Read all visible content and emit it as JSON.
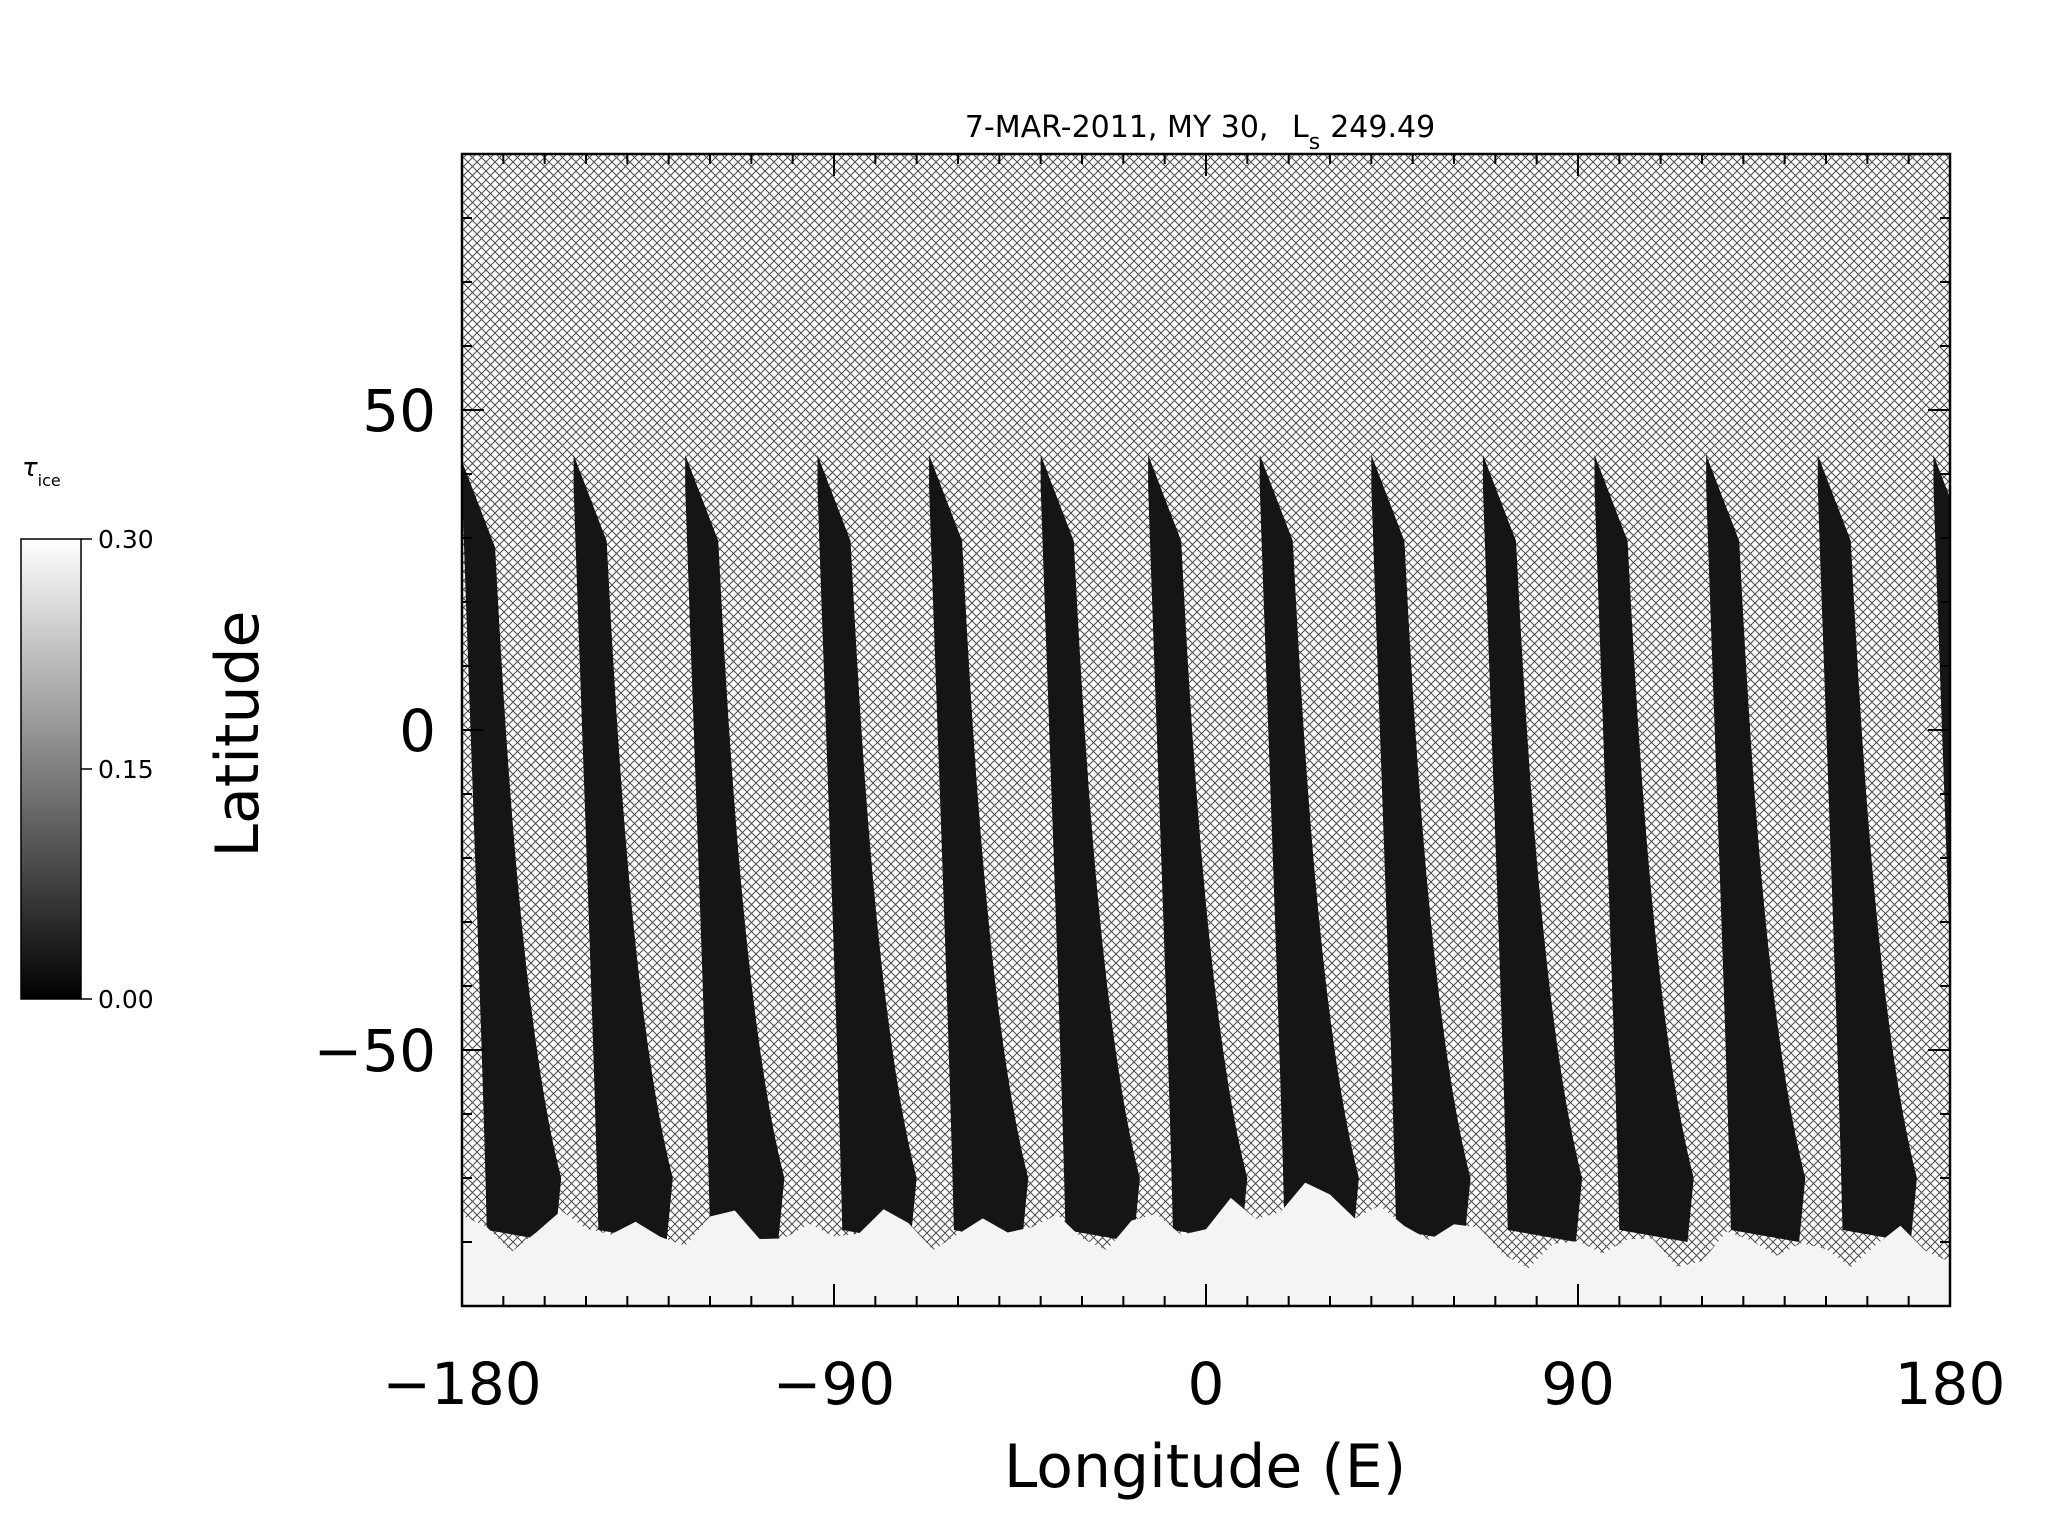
{
  "chart_data": {
    "type": "heatmap",
    "title": "7-MAR-2011, MY 30,",
    "title_ls_symbol": "L",
    "title_ls_subscript": "s",
    "title_ls_value": "249.49",
    "xlabel": "Longitude (E)",
    "ylabel": "Latitude",
    "xlim": [
      -180,
      180
    ],
    "ylim": [
      -90,
      90
    ],
    "x_ticks": [
      {
        "value": -180,
        "label": "−180"
      },
      {
        "value": -90,
        "label": "−90"
      },
      {
        "value": 0,
        "label": "0"
      },
      {
        "value": 90,
        "label": "90"
      },
      {
        "value": 180,
        "label": "180"
      }
    ],
    "y_ticks": [
      {
        "value": 50,
        "label": "50"
      },
      {
        "value": 0,
        "label": "0"
      },
      {
        "value": -50,
        "label": "−50"
      }
    ],
    "colorbar": {
      "label_symbol": "τ",
      "label_subscript": "ice",
      "min": 0.0,
      "max": 0.3,
      "ticks": [
        {
          "value": 0.3,
          "label": "0.30"
        },
        {
          "value": 0.15,
          "label": "0.15"
        },
        {
          "value": 0.0,
          "label": "0.00"
        }
      ],
      "colormap": "grayscale"
    },
    "no_data_fill": "crosshatch",
    "swaths": [
      {
        "lon_top": -180,
        "lat_top": 42
      },
      {
        "lon_top": -153,
        "lat_top": 43
      },
      {
        "lon_top": -126,
        "lat_top": 43
      },
      {
        "lon_top": -94,
        "lat_top": 43
      },
      {
        "lon_top": -67,
        "lat_top": 43
      },
      {
        "lon_top": -40,
        "lat_top": 43
      },
      {
        "lon_top": -14,
        "lat_top": 43
      },
      {
        "lon_top": 13,
        "lat_top": 43
      },
      {
        "lon_top": 40,
        "lat_top": 43
      },
      {
        "lon_top": 67,
        "lat_top": 43
      },
      {
        "lon_top": 94,
        "lat_top": 43
      },
      {
        "lon_top": 121,
        "lat_top": 43
      },
      {
        "lon_top": 148,
        "lat_top": 43
      },
      {
        "lon_top": 176,
        "lat_top": 43
      }
    ],
    "polar_ice_edge_lat": -74
  }
}
